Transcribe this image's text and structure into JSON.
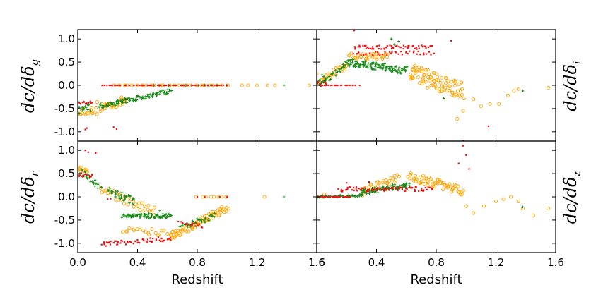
{
  "colors": {
    "red": "#ee1111",
    "orange": "#ffa500",
    "green": "#1a8a1a"
  },
  "xaxis": {
    "label": "Redshift",
    "left_ticks": [
      "0.0",
      "0.4",
      "0.8",
      "1.2",
      "1.6"
    ],
    "right_ticks": [
      "1.6",
      "0.4",
      "0.8",
      "1.2",
      "1.6"
    ]
  },
  "chart_data": [
    {
      "type": "scatter",
      "panel": "top-left",
      "ylabel": "dc/dδ_g",
      "xlim": [
        0,
        1.6
      ],
      "ylim": [
        -1.2,
        1.2
      ],
      "yticks": [
        "1.0",
        "0.5",
        "0.0",
        "-0.5",
        "-1.0"
      ],
      "series": [
        {
          "name": "red",
          "color": "#ee1111",
          "marker": "dot",
          "segments": [
            [
              0.16,
              0.0,
              1.0,
              0.0,
              70,
              0.0
            ],
            [
              0.0,
              -0.38,
              0.1,
              -0.36,
              14,
              0.04
            ]
          ],
          "points": [
            [
              0.05,
              -0.95
            ],
            [
              0.06,
              -0.92
            ],
            [
              0.24,
              -0.9
            ],
            [
              0.26,
              -0.94
            ]
          ]
        },
        {
          "name": "orange",
          "color": "#ffa500",
          "marker": "circle",
          "segments": [
            [
              0.0,
              -0.55,
              0.12,
              -0.55,
              18,
              0.08
            ],
            [
              0.15,
              -0.48,
              0.32,
              -0.32,
              30,
              0.1
            ],
            [
              0.25,
              0.0,
              1.0,
              0.0,
              26,
              0.0
            ]
          ],
          "points": [
            [
              0.0,
              -0.6
            ],
            [
              0.02,
              -0.62
            ],
            [
              0.13,
              -0.36
            ],
            [
              1.1,
              0.0
            ],
            [
              1.14,
              0.0
            ],
            [
              1.2,
              0.0
            ],
            [
              1.27,
              0.0
            ],
            [
              1.32,
              0.0
            ],
            [
              1.55,
              0.0
            ]
          ]
        },
        {
          "name": "green",
          "color": "#1a8a1a",
          "marker": "plus",
          "segments": [
            [
              0.0,
              -0.52,
              0.08,
              -0.45,
              16,
              0.1
            ],
            [
              0.15,
              -0.45,
              0.62,
              -0.12,
              90,
              0.05
            ],
            [
              0.5,
              0.0,
              1.0,
              0.0,
              14,
              0.0
            ]
          ],
          "points": [
            [
              1.38,
              0.0
            ]
          ]
        }
      ]
    },
    {
      "type": "scatter",
      "panel": "top-right",
      "ylabel": "dc/dδ_i",
      "xlim": [
        0,
        1.6
      ],
      "ylim": [
        -1.2,
        1.2
      ],
      "yticks": [
        "1.0",
        "0.5",
        "0.0",
        "-0.5",
        "-1.0"
      ],
      "series": [
        {
          "name": "red",
          "color": "#ee1111",
          "marker": "dot",
          "segments": [
            [
              0.0,
              0.0,
              0.28,
              0.0,
              24,
              0.0
            ],
            [
              0.25,
              0.82,
              0.78,
              0.82,
              60,
              0.04
            ],
            [
              0.25,
              0.68,
              0.78,
              0.7,
              40,
              0.04
            ],
            [
              0.0,
              0.05,
              0.06,
              0.03,
              8,
              0.06
            ]
          ],
          "points": [
            [
              0.24,
              1.2
            ],
            [
              0.25,
              1.18
            ],
            [
              0.9,
              0.96
            ],
            [
              0.98,
              -1.2
            ],
            [
              1.15,
              -0.88
            ]
          ]
        },
        {
          "name": "orange",
          "color": "#ffa500",
          "marker": "circle",
          "segments": [
            [
              0.02,
              0.08,
              0.2,
              0.42,
              26,
              0.08
            ],
            [
              0.22,
              0.62,
              0.48,
              0.6,
              30,
              0.08
            ],
            [
              0.62,
              0.28,
              0.98,
              -0.1,
              90,
              0.2
            ]
          ],
          "points": [
            [
              0.0,
              0.25
            ],
            [
              0.94,
              -0.72
            ],
            [
              0.98,
              -0.55
            ],
            [
              1.05,
              -0.3
            ],
            [
              1.1,
              -0.45
            ],
            [
              1.16,
              -0.4
            ],
            [
              1.22,
              -0.4
            ],
            [
              1.28,
              -0.22
            ],
            [
              1.32,
              -0.12
            ],
            [
              1.35,
              -0.08
            ],
            [
              1.55,
              -0.05
            ]
          ]
        },
        {
          "name": "green",
          "color": "#1a8a1a",
          "marker": "plus",
          "segments": [
            [
              0.02,
              0.0,
              0.2,
              0.45,
              28,
              0.06
            ],
            [
              0.2,
              0.5,
              0.6,
              0.32,
              110,
              0.08
            ],
            [
              0.0,
              0.15,
              0.06,
              0.1,
              10,
              0.1
            ]
          ],
          "points": [
            [
              0.5,
              1.0
            ],
            [
              0.55,
              0.95
            ],
            [
              0.52,
              0.88
            ],
            [
              0.85,
              -0.28
            ],
            [
              1.38,
              -0.12
            ]
          ]
        }
      ]
    },
    {
      "type": "scatter",
      "panel": "bottom-left",
      "ylabel": "dc/dδ_r",
      "xlim": [
        0,
        1.6
      ],
      "ylim": [
        -1.2,
        1.2
      ],
      "yticks": [
        "1.0",
        "0.5",
        "0.0",
        "-0.5",
        "-1.0"
      ],
      "series": [
        {
          "name": "red",
          "color": "#ee1111",
          "marker": "dot",
          "segments": [
            [
              0.0,
              0.48,
              0.1,
              0.45,
              14,
              0.04
            ],
            [
              0.16,
              -1.02,
              0.62,
              -0.9,
              60,
              0.05
            ],
            [
              0.68,
              -0.58,
              0.84,
              -0.62,
              16,
              0.05
            ]
          ],
          "points": [
            [
              0.05,
              1.0
            ],
            [
              0.07,
              0.96
            ],
            [
              0.12,
              0.94
            ],
            [
              0.2,
              -0.05
            ],
            [
              0.22,
              -0.04
            ],
            [
              0.8,
              0.0
            ],
            [
              0.85,
              0.0
            ],
            [
              0.95,
              0.0
            ],
            [
              1.0,
              0.0
            ]
          ]
        },
        {
          "name": "orange",
          "color": "#ffa500",
          "marker": "circle",
          "segments": [
            [
              0.0,
              0.62,
              0.06,
              0.55,
              10,
              0.06
            ],
            [
              0.16,
              0.15,
              0.52,
              -0.32,
              34,
              0.1
            ],
            [
              0.3,
              -0.72,
              0.65,
              -0.78,
              22,
              0.08
            ],
            [
              0.62,
              -0.85,
              1.0,
              -0.25,
              70,
              0.08
            ],
            [
              0.8,
              0.0,
              1.0,
              0.0,
              8,
              0.0
            ]
          ],
          "points": [
            [
              1.25,
              0.0
            ]
          ]
        },
        {
          "name": "green",
          "color": "#1a8a1a",
          "marker": "plus",
          "segments": [
            [
              0.02,
              0.52,
              0.15,
              0.22,
              20,
              0.08
            ],
            [
              0.2,
              0.15,
              0.38,
              -0.1,
              30,
              0.08
            ],
            [
              0.3,
              -0.4,
              0.62,
              -0.42,
              70,
              0.05
            ],
            [
              0.68,
              -0.68,
              0.92,
              -0.4,
              30,
              0.07
            ]
          ],
          "points": [
            [
              0.35,
              0.02
            ],
            [
              0.55,
              -0.3
            ],
            [
              1.38,
              0.0
            ]
          ]
        }
      ]
    },
    {
      "type": "scatter",
      "panel": "bottom-right",
      "ylabel": "dc/dδ_z",
      "xlim": [
        0,
        1.6
      ],
      "ylim": [
        -1.2,
        1.2
      ],
      "yticks": [
        "1.0",
        "0.5",
        "0.0",
        "-0.5",
        "-1.0"
      ],
      "series": [
        {
          "name": "red",
          "color": "#ee1111",
          "marker": "dot",
          "segments": [
            [
              0.0,
              0.0,
              0.22,
              0.0,
              24,
              0.0
            ],
            [
              0.15,
              0.16,
              0.78,
              0.17,
              80,
              0.05
            ]
          ],
          "points": [
            [
              0.2,
              0.3
            ],
            [
              0.35,
              0.32
            ],
            [
              0.98,
              1.1
            ],
            [
              1.0,
              0.9
            ],
            [
              0.95,
              0.72
            ],
            [
              1.02,
              0.6
            ]
          ]
        },
        {
          "name": "orange",
          "color": "#ffa500",
          "marker": "circle",
          "segments": [
            [
              0.3,
              0.1,
              0.55,
              0.42,
              30,
              0.08
            ],
            [
              0.62,
              0.45,
              0.98,
              0.12,
              60,
              0.1
            ]
          ],
          "points": [
            [
              0.05,
              0.05
            ],
            [
              1.0,
              -0.2
            ],
            [
              1.05,
              -0.35
            ],
            [
              1.12,
              -0.2
            ],
            [
              1.2,
              -0.1
            ],
            [
              1.25,
              -0.05
            ],
            [
              1.3,
              0.0
            ],
            [
              1.35,
              -0.1
            ],
            [
              1.38,
              -0.25
            ],
            [
              1.45,
              -0.4
            ],
            [
              1.55,
              -0.25
            ]
          ]
        },
        {
          "name": "green",
          "color": "#1a8a1a",
          "marker": "plus",
          "segments": [
            [
              0.0,
              0.0,
              0.3,
              0.03,
              50,
              0.02
            ],
            [
              0.3,
              0.1,
              0.62,
              0.25,
              70,
              0.06
            ]
          ],
          "points": [
            [
              1.38,
              -0.22
            ]
          ]
        }
      ]
    }
  ]
}
